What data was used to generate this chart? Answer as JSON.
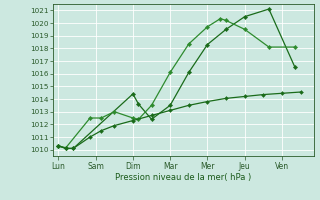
{
  "title": "",
  "xlabel": "Pression niveau de la mer( hPa )",
  "background_color": "#cce8e0",
  "grid_color": "#aad4cc",
  "line_color1": "#1a6b1a",
  "line_color2": "#2e8b2e",
  "line_color3": "#3a7a3a",
  "ylim": [
    1009.5,
    1021.5
  ],
  "yticks": [
    1010,
    1011,
    1012,
    1013,
    1014,
    1015,
    1016,
    1017,
    1018,
    1019,
    1020,
    1021
  ],
  "x_labels": [
    "Lun",
    "Sam",
    "Dim",
    "Mar",
    "Mer",
    "Jeu",
    "Ven"
  ],
  "x_tick_pos": [
    0,
    1,
    2,
    3,
    4,
    5,
    6
  ],
  "xlim": [
    -0.15,
    6.85
  ],
  "s1_x": [
    0.0,
    0.2,
    0.4,
    2.0,
    2.15,
    2.5,
    3.0,
    3.5,
    4.0,
    4.5,
    5.0,
    5.65,
    6.35
  ],
  "s1_y": [
    1010.3,
    1010.1,
    1010.1,
    1014.4,
    1013.6,
    1012.4,
    1013.5,
    1016.1,
    1018.3,
    1019.5,
    1020.5,
    1021.1,
    1016.5
  ],
  "s2_x": [
    0.0,
    0.2,
    0.85,
    1.15,
    1.5,
    2.0,
    2.15,
    2.5,
    3.0,
    3.5,
    4.0,
    4.35,
    4.5,
    5.0,
    5.65,
    6.35
  ],
  "s2_y": [
    1010.3,
    1010.15,
    1012.5,
    1012.5,
    1013.0,
    1012.5,
    1012.4,
    1013.5,
    1016.1,
    1018.35,
    1019.7,
    1020.35,
    1020.2,
    1019.5,
    1018.1,
    1018.1
  ],
  "s3_x": [
    0.0,
    0.2,
    0.4,
    0.85,
    1.15,
    1.5,
    2.0,
    2.5,
    3.0,
    3.5,
    4.0,
    4.5,
    5.0,
    5.5,
    6.0,
    6.5
  ],
  "s3_y": [
    1010.3,
    1010.1,
    1010.1,
    1011.0,
    1011.5,
    1011.9,
    1012.3,
    1012.7,
    1013.1,
    1013.5,
    1013.8,
    1014.05,
    1014.2,
    1014.35,
    1014.45,
    1014.55
  ]
}
